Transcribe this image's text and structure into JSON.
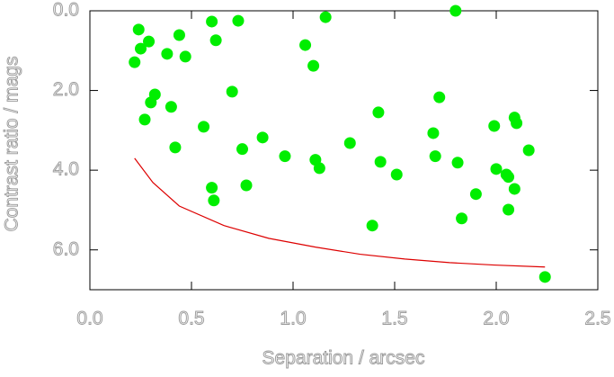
{
  "chart_data": {
    "type": "scatter",
    "x_label": "Separation / arcsec",
    "y_label": "Contrast ratio / mags",
    "xlim": [
      0,
      2.5
    ],
    "ylim": [
      7,
      0
    ],
    "xticks": [
      {
        "value": 0,
        "label": "0.0"
      },
      {
        "value": 0.5,
        "label": "0.5"
      },
      {
        "value": 1,
        "label": "1.0"
      },
      {
        "value": 1.5,
        "label": "1.5"
      },
      {
        "value": 2,
        "label": "2.0"
      },
      {
        "value": 2.5,
        "label": "2.5"
      }
    ],
    "yticks": [
      {
        "value": 0,
        "label": "0.0"
      },
      {
        "value": 2,
        "label": "2.0"
      },
      {
        "value": 4,
        "label": "4.0"
      },
      {
        "value": 6,
        "label": "6.0"
      }
    ],
    "series": [
      {
        "type": "scatter",
        "color": "#00ee00",
        "x": [
          0.22,
          0.24,
          0.25,
          0.29,
          0.27,
          0.3,
          0.32,
          0.38,
          0.4,
          0.42,
          0.44,
          0.47,
          0.56,
          0.6,
          0.62,
          0.6,
          0.61,
          0.7,
          0.73,
          0.75,
          0.77,
          0.85,
          0.96,
          1.06,
          1.1,
          1.11,
          1.13,
          1.16,
          1.28,
          1.39,
          1.42,
          1.43,
          1.51,
          1.69,
          1.7,
          1.72,
          1.8,
          1.81,
          1.83,
          1.9,
          1.99,
          2.0,
          2.05,
          2.06,
          2.06,
          2.09,
          2.1,
          2.09,
          2.16,
          2.24
        ],
        "values": [
          1.29,
          0.47,
          0.95,
          0.77,
          2.73,
          2.3,
          2.1,
          1.08,
          2.41,
          3.43,
          0.61,
          1.15,
          2.91,
          0.27,
          0.74,
          4.44,
          4.76,
          2.03,
          0.25,
          3.47,
          4.38,
          3.18,
          3.65,
          0.86,
          1.38,
          3.74,
          3.95,
          0.16,
          3.32,
          5.39,
          2.55,
          3.79,
          4.11,
          3.07,
          3.65,
          2.17,
          0.0,
          3.81,
          5.21,
          4.6,
          2.89,
          3.97,
          4.11,
          4.17,
          4.99,
          2.68,
          2.82,
          4.47,
          3.5,
          6.68
        ]
      },
      {
        "type": "line",
        "color": "#dd0000",
        "x": [
          0.22,
          0.31,
          0.44,
          0.66,
          0.88,
          1.11,
          1.33,
          1.55,
          1.77,
          1.99,
          2.24
        ],
        "values": [
          3.7,
          4.31,
          4.9,
          5.39,
          5.71,
          5.93,
          6.11,
          6.23,
          6.32,
          6.38,
          6.43
        ]
      }
    ]
  }
}
